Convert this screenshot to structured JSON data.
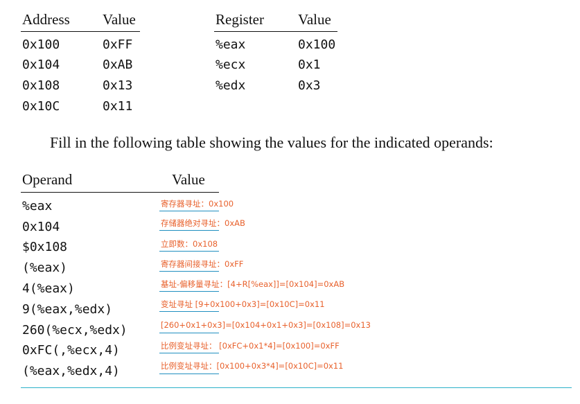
{
  "memory_table": {
    "headers": [
      "Address",
      "Value"
    ],
    "rows": [
      [
        "0x100",
        "0xFF"
      ],
      [
        "0x104",
        "0xAB"
      ],
      [
        "0x108",
        "0x13"
      ],
      [
        "0x10C",
        "0x11"
      ]
    ]
  },
  "register_table": {
    "headers": [
      "Register",
      "Value"
    ],
    "rows": [
      [
        "%eax",
        "0x100"
      ],
      [
        "%ecx",
        "0x1"
      ],
      [
        "%edx",
        "0x3"
      ]
    ]
  },
  "instruction": "Fill in the following table showing the values for the indicated operands:",
  "operand_table": {
    "headers": [
      "Operand",
      "Value"
    ],
    "rows": [
      {
        "operand": "%eax",
        "answer": "寄存器寻址：0x100"
      },
      {
        "operand": "0x104",
        "answer": "存储器绝对寻址：0xAB"
      },
      {
        "operand": "$0x108",
        "answer": "立即数：0x108"
      },
      {
        "operand": "(%eax)",
        "answer": "寄存器间接寻址：0xFF"
      },
      {
        "operand": "4(%eax)",
        "answer": "基址-偏移量寻址：[4+R[%eax]]=[0x104]=0xAB"
      },
      {
        "operand": "9(%eax,%edx)",
        "answer": "变址寻址 [9+0x100+0x3]=[0x10C]=0x11"
      },
      {
        "operand": "260(%ecx,%edx)",
        "answer": "[260+0x1+0x3]=[0x104+0x1+0x3]=[0x108]=0x13"
      },
      {
        "operand": "0xFC(,%ecx,4)",
        "answer": "比例变址寻址：  [0xFC+0x1*4]=[0x100]=0xFF"
      },
      {
        "operand": "(%eax,%edx,4)",
        "answer": "比例变址寻址：[0x100+0x3*4]=[0x10C]=0x11"
      }
    ]
  },
  "colors": {
    "answer_text": "#e8612c",
    "answer_underline": "#1f8fc0",
    "bottom_rule": "#2ab0c8"
  }
}
